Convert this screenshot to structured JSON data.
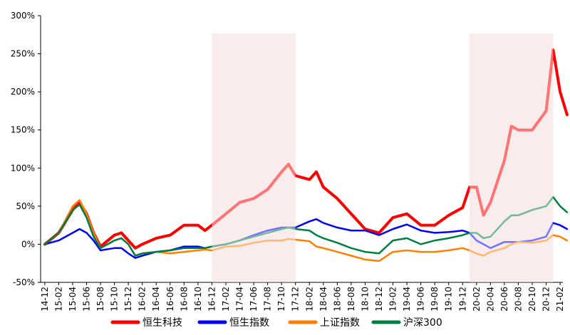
{
  "chart_data": {
    "type": "line",
    "title": "",
    "xlabel": "",
    "ylabel": "",
    "ylim": [
      -50,
      300
    ],
    "yticks": [
      -50,
      0,
      50,
      100,
      150,
      200,
      250,
      300
    ],
    "ytick_labels": [
      "-50%",
      "0%",
      "50%",
      "100%",
      "150%",
      "200%",
      "250%",
      "300%"
    ],
    "x_tick_labels": [
      "14-12",
      "15-02",
      "15-04",
      "15-06",
      "15-08",
      "15-10",
      "15-12",
      "16-02",
      "16-04",
      "16-06",
      "16-08",
      "16-10",
      "16-12",
      "17-02",
      "17-04",
      "17-06",
      "17-08",
      "17-10",
      "17-12",
      "18-02",
      "18-04",
      "18-06",
      "18-08",
      "18-10",
      "18-12",
      "19-02",
      "19-04",
      "19-06",
      "19-08",
      "19-10",
      "19-12",
      "20-02",
      "20-04",
      "20-06",
      "20-08",
      "20-10",
      "20-12",
      "21-02"
    ],
    "grid": false,
    "legend_position": "bottom",
    "shaded_regions": [
      {
        "from": "16-12",
        "to": "17-12",
        "color": "#f2dcdc"
      },
      {
        "from": "20-01",
        "to": "21-01",
        "color": "#f2dcdc"
      }
    ],
    "x": [
      "14-12",
      "15-02",
      "15-04",
      "15-05",
      "15-06",
      "15-07",
      "15-08",
      "15-10",
      "15-11",
      "15-12",
      "16-01",
      "16-02",
      "16-04",
      "16-06",
      "16-08",
      "16-10",
      "16-11",
      "16-12",
      "17-02",
      "17-04",
      "17-06",
      "17-08",
      "17-10",
      "17-11",
      "17-12",
      "18-02",
      "18-03",
      "18-04",
      "18-06",
      "18-08",
      "18-10",
      "18-12",
      "19-02",
      "19-04",
      "19-06",
      "19-08",
      "19-10",
      "19-12",
      "20-01",
      "20-02",
      "20-03",
      "20-04",
      "20-06",
      "20-07",
      "20-08",
      "20-10",
      "20-12",
      "21-01",
      "21-02",
      "21-03"
    ],
    "series": [
      {
        "name": "恒生科技",
        "color": "#ff0000",
        "values": [
          0,
          15,
          45,
          55,
          40,
          15,
          -3,
          12,
          15,
          5,
          -5,
          0,
          8,
          12,
          25,
          25,
          18,
          25,
          40,
          55,
          60,
          72,
          95,
          105,
          90,
          85,
          95,
          75,
          60,
          40,
          20,
          15,
          35,
          40,
          25,
          25,
          38,
          48,
          75,
          75,
          38,
          55,
          110,
          155,
          150,
          150,
          175,
          255,
          200,
          170
        ]
      },
      {
        "name": "恒生指数",
        "color": "#0000ff",
        "values": [
          0,
          5,
          15,
          20,
          15,
          5,
          -8,
          -5,
          -5,
          -12,
          -18,
          -15,
          -10,
          -8,
          -3,
          -3,
          -5,
          -3,
          0,
          5,
          12,
          18,
          22,
          22,
          22,
          30,
          33,
          28,
          22,
          18,
          18,
          12,
          20,
          26,
          18,
          15,
          16,
          18,
          15,
          5,
          0,
          -5,
          3,
          3,
          3,
          5,
          10,
          28,
          25,
          20
        ]
      },
      {
        "name": "上证指数",
        "color": "#ff7f00",
        "values": [
          0,
          15,
          50,
          58,
          40,
          15,
          -5,
          5,
          8,
          0,
          -15,
          -12,
          -10,
          -12,
          -10,
          -8,
          -7,
          -8,
          -3,
          -2,
          2,
          5,
          5,
          7,
          6,
          4,
          -3,
          -5,
          -10,
          -15,
          -20,
          -22,
          -10,
          -8,
          -10,
          -10,
          -8,
          -5,
          -8,
          -12,
          -15,
          -10,
          -5,
          0,
          3,
          2,
          5,
          12,
          10,
          5
        ]
      },
      {
        "name": "沪深300",
        "color": "#008040",
        "values": [
          0,
          15,
          45,
          52,
          35,
          10,
          -5,
          5,
          8,
          0,
          -15,
          -12,
          -10,
          -8,
          -5,
          -5,
          -5,
          -3,
          0,
          5,
          10,
          15,
          20,
          22,
          20,
          18,
          12,
          8,
          2,
          -5,
          -10,
          -12,
          5,
          8,
          0,
          5,
          8,
          12,
          15,
          15,
          8,
          10,
          30,
          38,
          38,
          45,
          50,
          62,
          50,
          42
        ]
      }
    ]
  }
}
